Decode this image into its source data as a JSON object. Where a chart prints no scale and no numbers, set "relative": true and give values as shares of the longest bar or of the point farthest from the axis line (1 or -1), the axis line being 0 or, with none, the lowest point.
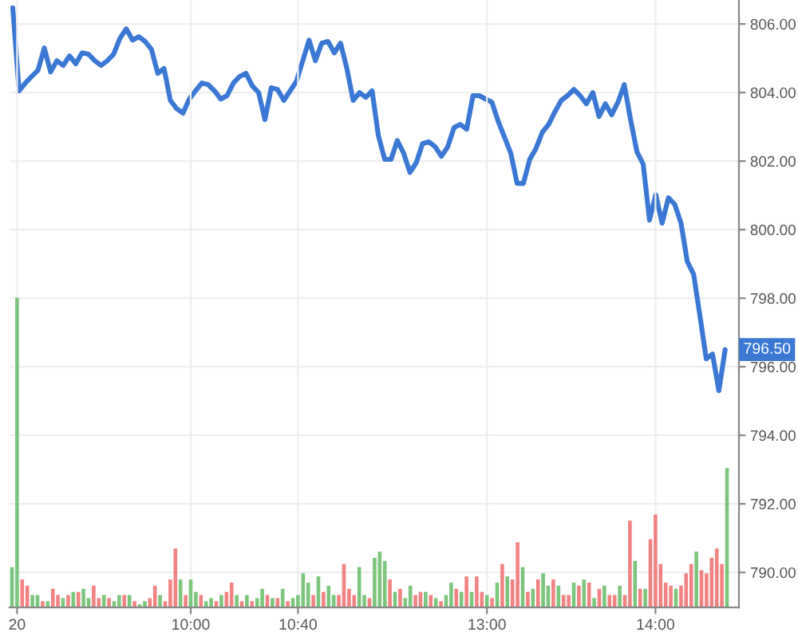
{
  "chart_data": [
    {
      "type": "line",
      "categories": [
        null,
        null,
        null,
        null,
        null,
        null,
        null,
        null,
        null,
        null,
        null,
        null,
        null,
        null,
        null,
        null,
        null,
        null,
        null,
        null,
        null,
        null,
        null,
        null,
        null,
        null,
        null,
        null,
        null,
        null,
        null,
        null,
        null,
        null,
        null,
        null,
        null,
        null,
        null,
        null,
        null,
        null,
        null,
        null,
        null,
        null,
        null,
        null,
        null,
        null,
        null,
        null,
        null,
        null,
        null,
        null,
        null,
        null,
        null,
        null,
        null,
        null,
        null,
        null,
        null,
        null,
        null,
        null,
        null,
        null,
        null,
        null,
        null,
        null,
        null,
        null,
        null,
        null,
        null,
        null,
        null,
        null,
        null,
        null,
        null,
        null,
        null,
        null,
        null,
        null,
        null,
        null,
        null,
        null,
        null,
        null,
        null,
        null,
        null,
        null,
        null,
        null,
        null,
        null,
        null,
        null,
        null,
        null,
        null,
        null,
        null,
        null,
        null,
        null
      ],
      "series": [
        {
          "color": "#3b78d4",
          "values": [
            806.47,
            804.05,
            804.28,
            804.47,
            804.65,
            805.3,
            804.6,
            804.93,
            804.79,
            805.07,
            804.84,
            805.16,
            805.12,
            804.93,
            804.79,
            804.93,
            805.12,
            805.58,
            805.86,
            805.53,
            805.63,
            805.49,
            805.26,
            804.56,
            804.7,
            803.77,
            803.53,
            803.4,
            803.81,
            804.05,
            804.28,
            804.23,
            804.05,
            803.81,
            803.91,
            804.28,
            804.47,
            804.56,
            804.19,
            804.0,
            803.21,
            804.14,
            804.09,
            803.77,
            804.05,
            804.33,
            804.93,
            805.53,
            804.93,
            805.44,
            805.49,
            805.16,
            805.44,
            804.7,
            803.77,
            804.0,
            803.86,
            804.05,
            802.74,
            802.05,
            802.05,
            802.6,
            802.23,
            801.67,
            801.95,
            802.51,
            802.56,
            802.42,
            802.14,
            802.42,
            802.98,
            803.07,
            802.93,
            803.91,
            803.91,
            803.81,
            803.72,
            803.16,
            802.7,
            802.23,
            801.35,
            801.35,
            802.05,
            802.37,
            802.84,
            803.07,
            803.44,
            803.77,
            803.91,
            804.09,
            803.91,
            803.67,
            804.0,
            803.3,
            803.67,
            803.35,
            803.72,
            804.23,
            803.21,
            802.28,
            801.91,
            800.28,
            801.02,
            800.19,
            800.93,
            800.74,
            800.19,
            799.07,
            798.7,
            797.49,
            796.23,
            796.37,
            795.3,
            796.5
          ]
        }
      ],
      "ylim": [
        788.98,
        806.7
      ],
      "yticks": [
        {
          "value": 790,
          "label": "790.00"
        },
        {
          "value": 792,
          "label": "792.00"
        },
        {
          "value": 794,
          "label": "794.00"
        },
        {
          "value": 796,
          "label": "796.00"
        },
        {
          "value": 798,
          "label": "798.00"
        },
        {
          "value": 800,
          "label": "800.00"
        },
        {
          "value": 802,
          "label": "802.00"
        },
        {
          "value": 804,
          "label": "804.00"
        },
        {
          "value": 806,
          "label": "806.00"
        }
      ],
      "grid": true,
      "tick_labels": "y",
      "marker": "none",
      "line_style": "solid",
      "annotations": [
        {
          "text": "796.50",
          "y": 796.5
        }
      ]
    },
    {
      "type": "bar",
      "relative": true,
      "tick_labels": "x",
      "grid": "x",
      "categories": [
        null,
        "20",
        null,
        null,
        null,
        null,
        null,
        null,
        null,
        null,
        null,
        null,
        null,
        null,
        null,
        null,
        null,
        null,
        null,
        null,
        null,
        null,
        null,
        null,
        null,
        null,
        null,
        null,
        null,
        null,
        null,
        null,
        null,
        null,
        null,
        "10:00",
        null,
        null,
        null,
        null,
        null,
        null,
        null,
        null,
        null,
        null,
        null,
        null,
        null,
        null,
        null,
        null,
        null,
        null,
        null,
        null,
        "10:40",
        null,
        null,
        null,
        null,
        null,
        null,
        null,
        null,
        null,
        null,
        null,
        null,
        null,
        null,
        null,
        null,
        null,
        null,
        null,
        null,
        null,
        null,
        null,
        null,
        null,
        null,
        null,
        null,
        null,
        null,
        null,
        null,
        null,
        null,
        null,
        null,
        "13:00",
        null,
        null,
        null,
        null,
        null,
        null,
        null,
        null,
        null,
        null,
        null,
        null,
        null,
        null,
        null,
        null,
        null,
        null,
        null,
        null,
        null,
        null,
        null,
        null,
        null,
        null,
        null,
        null,
        null,
        null,
        null,
        null,
        "14:00",
        null,
        null,
        null,
        null,
        null,
        null,
        null,
        null,
        null,
        null,
        null,
        null,
        null,
        null
      ],
      "values": [
        0.13,
        1,
        0.09,
        0.07,
        0.04,
        0.04,
        0.02,
        0.02,
        0.06,
        0.04,
        0.03,
        0.04,
        0.05,
        0.05,
        0.06,
        0.03,
        0.07,
        0.03,
        0.04,
        0.03,
        0.02,
        0.04,
        0.04,
        0.04,
        0.02,
        0.01,
        0.02,
        0.03,
        0.07,
        0.04,
        0.02,
        0.09,
        0.19,
        0.09,
        0.04,
        0.09,
        0.05,
        0.04,
        0.02,
        0.03,
        0.02,
        0.04,
        0.05,
        0.08,
        0.04,
        0.02,
        0.04,
        0.02,
        0.03,
        0.06,
        0.04,
        0.03,
        0.03,
        0.06,
        0.02,
        0.03,
        0.04,
        0.11,
        0.08,
        0.04,
        0.1,
        0.05,
        0.07,
        0.04,
        0.04,
        0.14,
        0.06,
        0.04,
        0.13,
        0.04,
        0.03,
        0.16,
        0.18,
        0.15,
        0.09,
        0.05,
        0.06,
        0.03,
        0.07,
        0.04,
        0.05,
        0.05,
        0.04,
        0.03,
        0.02,
        0.04,
        0.08,
        0.06,
        0.05,
        0.1,
        0.05,
        0.1,
        0.05,
        0.04,
        0.03,
        0.08,
        0.14,
        0.1,
        0.09,
        0.21,
        0.13,
        0.05,
        0.06,
        0.09,
        0.11,
        0.07,
        0.09,
        0.07,
        0.04,
        0.04,
        0.08,
        0.07,
        0.09,
        0.08,
        0.03,
        0.06,
        0.07,
        0.04,
        0.04,
        0.07,
        0.04,
        0.28,
        0.15,
        0.06,
        0.06,
        0.22,
        0.3,
        0.14,
        0.08,
        0.07,
        0.06,
        0.07,
        0.11,
        0.14,
        0.18,
        0.12,
        0.11,
        0.16,
        0.19,
        0.14,
        0.45
      ],
      "colors": [
        "#7cc67c",
        "#7cc67c",
        "#f28282",
        "#f28282",
        "#7cc67c",
        "#7cc67c",
        "#f28282",
        "#7cc67c",
        "#f28282",
        "#f28282",
        "#7cc67c",
        "#f28282",
        "#7cc67c",
        "#f28282",
        "#7cc67c",
        "#7cc67c",
        "#f28282",
        "#f28282",
        "#7cc67c",
        "#f28282",
        "#7cc67c",
        "#7cc67c",
        "#f28282",
        "#7cc67c",
        "#f28282",
        "#7cc67c",
        "#7cc67c",
        "#f28282",
        "#f28282",
        "#7cc67c",
        "#f28282",
        "#f28282",
        "#f28282",
        "#7cc67c",
        "#f28282",
        "#7cc67c",
        "#7cc67c",
        "#f28282",
        "#7cc67c",
        "#7cc67c",
        "#f28282",
        "#7cc67c",
        "#f28282",
        "#f28282",
        "#7cc67c",
        "#f28282",
        "#7cc67c",
        "#f28282",
        "#7cc67c",
        "#7cc67c",
        "#f28282",
        "#7cc67c",
        "#f28282",
        "#7cc67c",
        "#f28282",
        "#7cc67c",
        "#7cc67c",
        "#7cc67c",
        "#7cc67c",
        "#f28282",
        "#7cc67c",
        "#f28282",
        "#7cc67c",
        "#7cc67c",
        "#f28282",
        "#f28282",
        "#f28282",
        "#f28282",
        "#7cc67c",
        "#7cc67c",
        "#f28282",
        "#7cc67c",
        "#7cc67c",
        "#7cc67c",
        "#f28282",
        "#7cc67c",
        "#f28282",
        "#7cc67c",
        "#7cc67c",
        "#f28282",
        "#f28282",
        "#7cc67c",
        "#f28282",
        "#7cc67c",
        "#f28282",
        "#7cc67c",
        "#7cc67c",
        "#f28282",
        "#7cc67c",
        "#f28282",
        "#7cc67c",
        "#f28282",
        "#f28282",
        "#7cc67c",
        "#f28282",
        "#7cc67c",
        "#f28282",
        "#7cc67c",
        "#f28282",
        "#f28282",
        "#7cc67c",
        "#f28282",
        "#7cc67c",
        "#f28282",
        "#7cc67c",
        "#7cc67c",
        "#f28282",
        "#7cc67c",
        "#f28282",
        "#f28282",
        "#7cc67c",
        "#f28282",
        "#7cc67c",
        "#f28282",
        "#7cc67c",
        "#f28282",
        "#7cc67c",
        "#f28282",
        "#f28282",
        "#7cc67c",
        "#f28282",
        "#f28282",
        "#7cc67c",
        "#f28282",
        "#7cc67c",
        "#f28282",
        "#f28282",
        "#f28282",
        "#f28282",
        "#f28282",
        "#7cc67c",
        "#f28282",
        "#f28282",
        "#f28282",
        "#7cc67c",
        "#f28282",
        "#f28282",
        "#f28282",
        "#f28282",
        "#f28282",
        "#7cc67c"
      ]
    }
  ]
}
